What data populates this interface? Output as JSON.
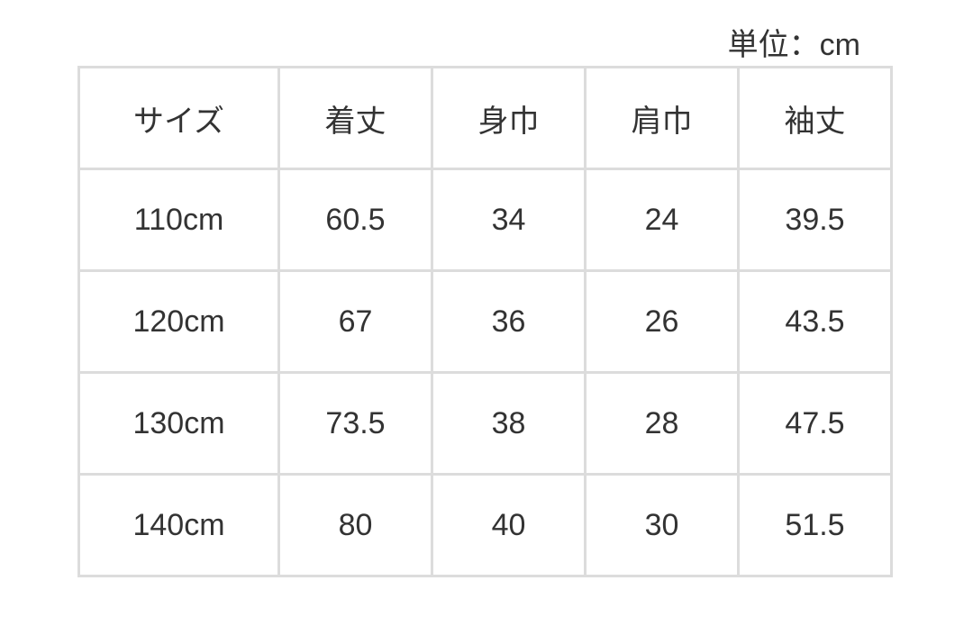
{
  "unit_label": "単位：cm",
  "table": {
    "headers": [
      "サイズ",
      "着丈",
      "身巾",
      "肩巾",
      "袖丈"
    ],
    "rows": [
      [
        "110cm",
        "60.5",
        "34",
        "24",
        "39.5"
      ],
      [
        "120cm",
        "67",
        "36",
        "26",
        "43.5"
      ],
      [
        "130cm",
        "73.5",
        "38",
        "28",
        "47.5"
      ],
      [
        "140cm",
        "80",
        "40",
        "30",
        "51.5"
      ]
    ]
  }
}
